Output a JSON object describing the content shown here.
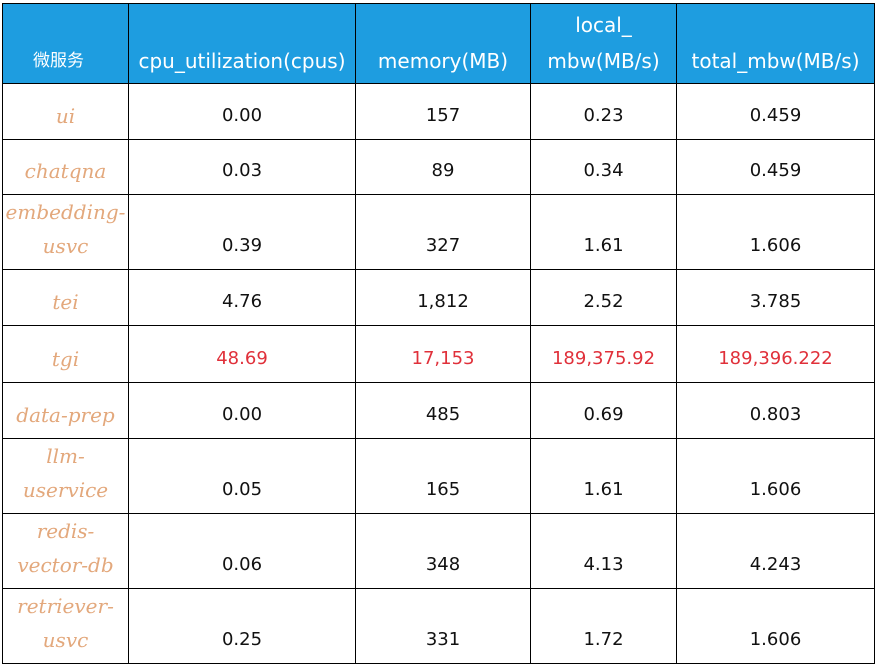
{
  "table": {
    "header": [
      "微服务",
      "cpu_utilization(cpus)",
      "memory(MB)",
      "local_\nmbw(MB/s)",
      "total_mbw(MB/s)"
    ],
    "header_color": "#1e9de0",
    "name_color": "#e3a87c",
    "rows": [
      {
        "cells": [
          "ui",
          "0.00",
          "157",
          "0.23",
          "0.459"
        ]
      },
      {
        "cells": [
          "chatqna",
          "0.03",
          "89",
          "0.34",
          "0.459"
        ]
      },
      {
        "cells": [
          "embedding-usvc",
          "0.39",
          "327",
          "1.61",
          "1.606"
        ]
      },
      {
        "cells": [
          "tei",
          "4.76",
          "1,812",
          "2.52",
          "3.785"
        ]
      },
      {
        "cells": [
          "tgi",
          "48.69",
          "17,153",
          "189,375.92",
          "189,396.222"
        ],
        "color": "#e0303a"
      },
      {
        "cells": [
          "data-prep",
          "0.00",
          "485",
          "0.69",
          "0.803"
        ]
      },
      {
        "cells": [
          "llm-uservice",
          "0.05",
          "165",
          "1.61",
          "1.606"
        ]
      },
      {
        "cells": [
          "redis-vector-db",
          "0.06",
          "348",
          "4.13",
          "4.243"
        ]
      },
      {
        "cells": [
          "retriever-usvc",
          "0.25",
          "331",
          "1.72",
          "1.606"
        ]
      }
    ]
  }
}
